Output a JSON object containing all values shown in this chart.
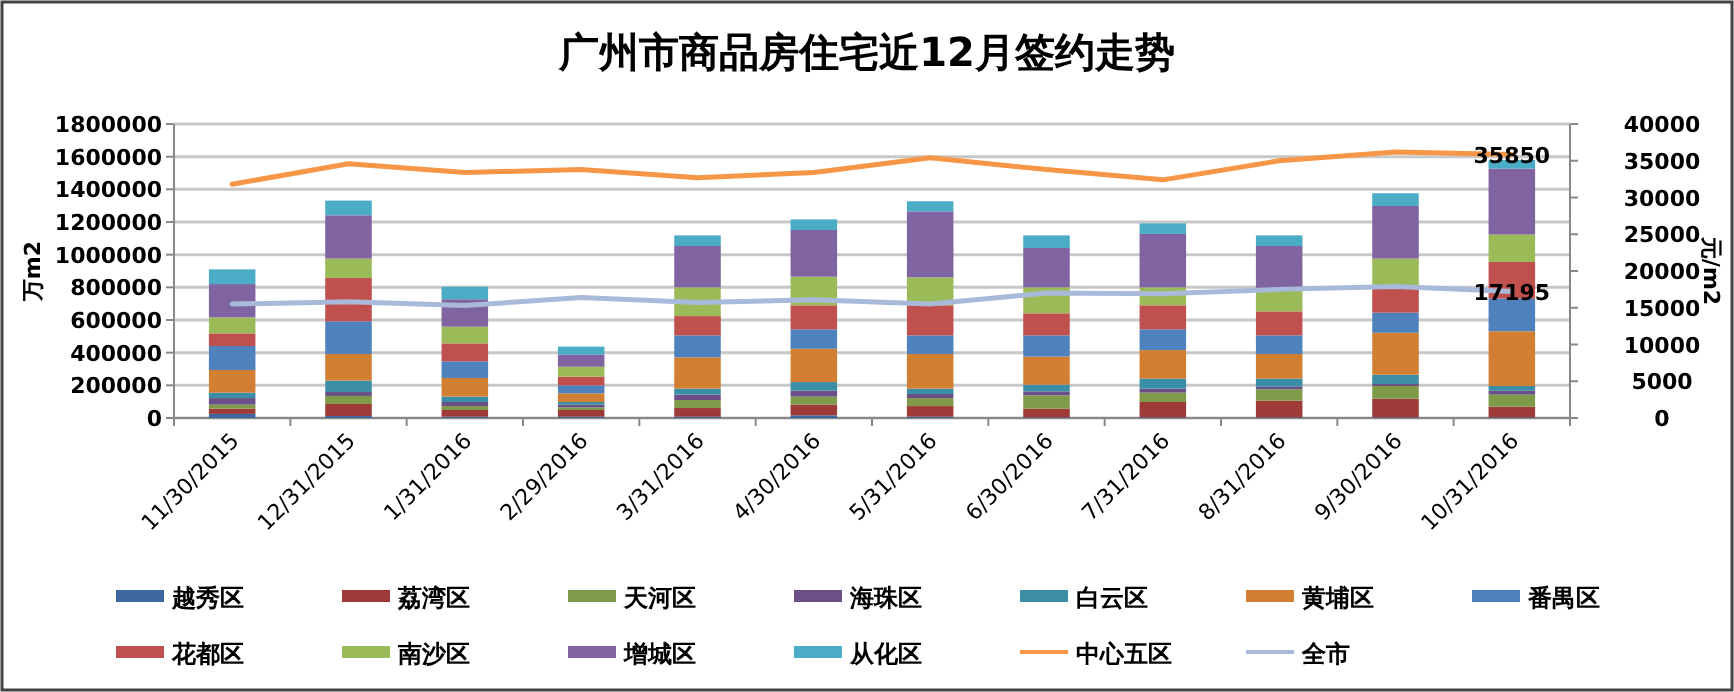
{
  "chart_data": {
    "type": "bar",
    "title": "广州市商品房住宅近12月签约走势",
    "ylabel": "万m2",
    "y2label": "元/m2",
    "stacked": true,
    "grid": "y",
    "legend": "bottom",
    "categories": [
      "11/30/2015",
      "12/31/2015",
      "1/31/2016",
      "2/29/2016",
      "3/31/2016",
      "4/30/2016",
      "5/31/2016",
      "6/30/2016",
      "7/31/2016",
      "8/31/2016",
      "9/30/2016",
      "10/31/2016"
    ],
    "ylim": [
      0,
      1800000
    ],
    "yticks": [
      0,
      200000,
      400000,
      600000,
      800000,
      1000000,
      1200000,
      1400000,
      1600000,
      1800000
    ],
    "y2lim": [
      0,
      40000
    ],
    "y2ticks": [
      0,
      5000,
      10000,
      15000,
      20000,
      25000,
      30000,
      35000,
      40000
    ],
    "series": [
      {
        "name": "越秀区",
        "color": "#3e66a0",
        "values": [
          25000,
          12000,
          8000,
          8000,
          8000,
          16000,
          8000,
          4000,
          4000,
          4000,
          4000,
          4000
        ]
      },
      {
        "name": "荔湾区",
        "color": "#9e3b38",
        "values": [
          32000,
          74000,
          41000,
          41000,
          53000,
          66000,
          65000,
          53000,
          94000,
          102000,
          114000,
          65000
        ]
      },
      {
        "name": "天河区",
        "color": "#7f9a48",
        "values": [
          25000,
          49000,
          24000,
          16000,
          49000,
          49000,
          49000,
          82000,
          57000,
          70000,
          78000,
          74000
        ]
      },
      {
        "name": "海珠区",
        "color": "#6a5087",
        "values": [
          40000,
          24000,
          25000,
          17000,
          33000,
          36000,
          25000,
          24000,
          25000,
          16000,
          12000,
          24000
        ]
      },
      {
        "name": "白云区",
        "color": "#3b8ea5",
        "values": [
          33000,
          70000,
          33000,
          16000,
          37000,
          53000,
          33000,
          41000,
          61000,
          49000,
          57000,
          29000
        ]
      },
      {
        "name": "黄埔区",
        "color": "#d27f33",
        "values": [
          139000,
          163000,
          114000,
          53000,
          191000,
          204000,
          212000,
          172000,
          175000,
          151000,
          257000,
          335000
        ]
      },
      {
        "name": "番禺区",
        "color": "#4f81bd",
        "values": [
          147000,
          200000,
          102000,
          49000,
          135000,
          119000,
          114000,
          130000,
          127000,
          114000,
          123000,
          200000
        ]
      },
      {
        "name": "花都区",
        "color": "#c0504d",
        "values": [
          77000,
          265000,
          110000,
          53000,
          118000,
          147000,
          184000,
          135000,
          147000,
          147000,
          155000,
          224000
        ]
      },
      {
        "name": "南沙区",
        "color": "#9bbb59",
        "values": [
          98000,
          119000,
          102000,
          61000,
          176000,
          175000,
          171000,
          159000,
          110000,
          127000,
          176000,
          168000
        ]
      },
      {
        "name": "增城区",
        "color": "#8064a2",
        "values": [
          204000,
          265000,
          168000,
          74000,
          253000,
          286000,
          404000,
          241000,
          327000,
          273000,
          322000,
          404000
        ]
      },
      {
        "name": "从化区",
        "color": "#4bacc6",
        "values": [
          90000,
          90000,
          77000,
          49000,
          65000,
          65000,
          62000,
          77000,
          65000,
          65000,
          78000,
          53000
        ]
      },
      {
        "name": "中心五区",
        "type": "line",
        "axis": "y2",
        "color": "#f79646",
        "values": [
          31800,
          34600,
          33400,
          33800,
          32700,
          33400,
          35400,
          33800,
          32400,
          35000,
          36200,
          35850
        ],
        "value_labels": [
          null,
          null,
          null,
          null,
          null,
          null,
          null,
          null,
          null,
          null,
          null,
          "35850"
        ]
      },
      {
        "name": "全市",
        "type": "line",
        "axis": "y2",
        "color": "#a9b9d9",
        "values": [
          15500,
          15800,
          15300,
          16400,
          15700,
          16100,
          15500,
          17000,
          16900,
          17500,
          17900,
          17195
        ],
        "value_labels": [
          null,
          null,
          null,
          null,
          null,
          null,
          null,
          null,
          null,
          null,
          null,
          "17195"
        ]
      }
    ]
  }
}
